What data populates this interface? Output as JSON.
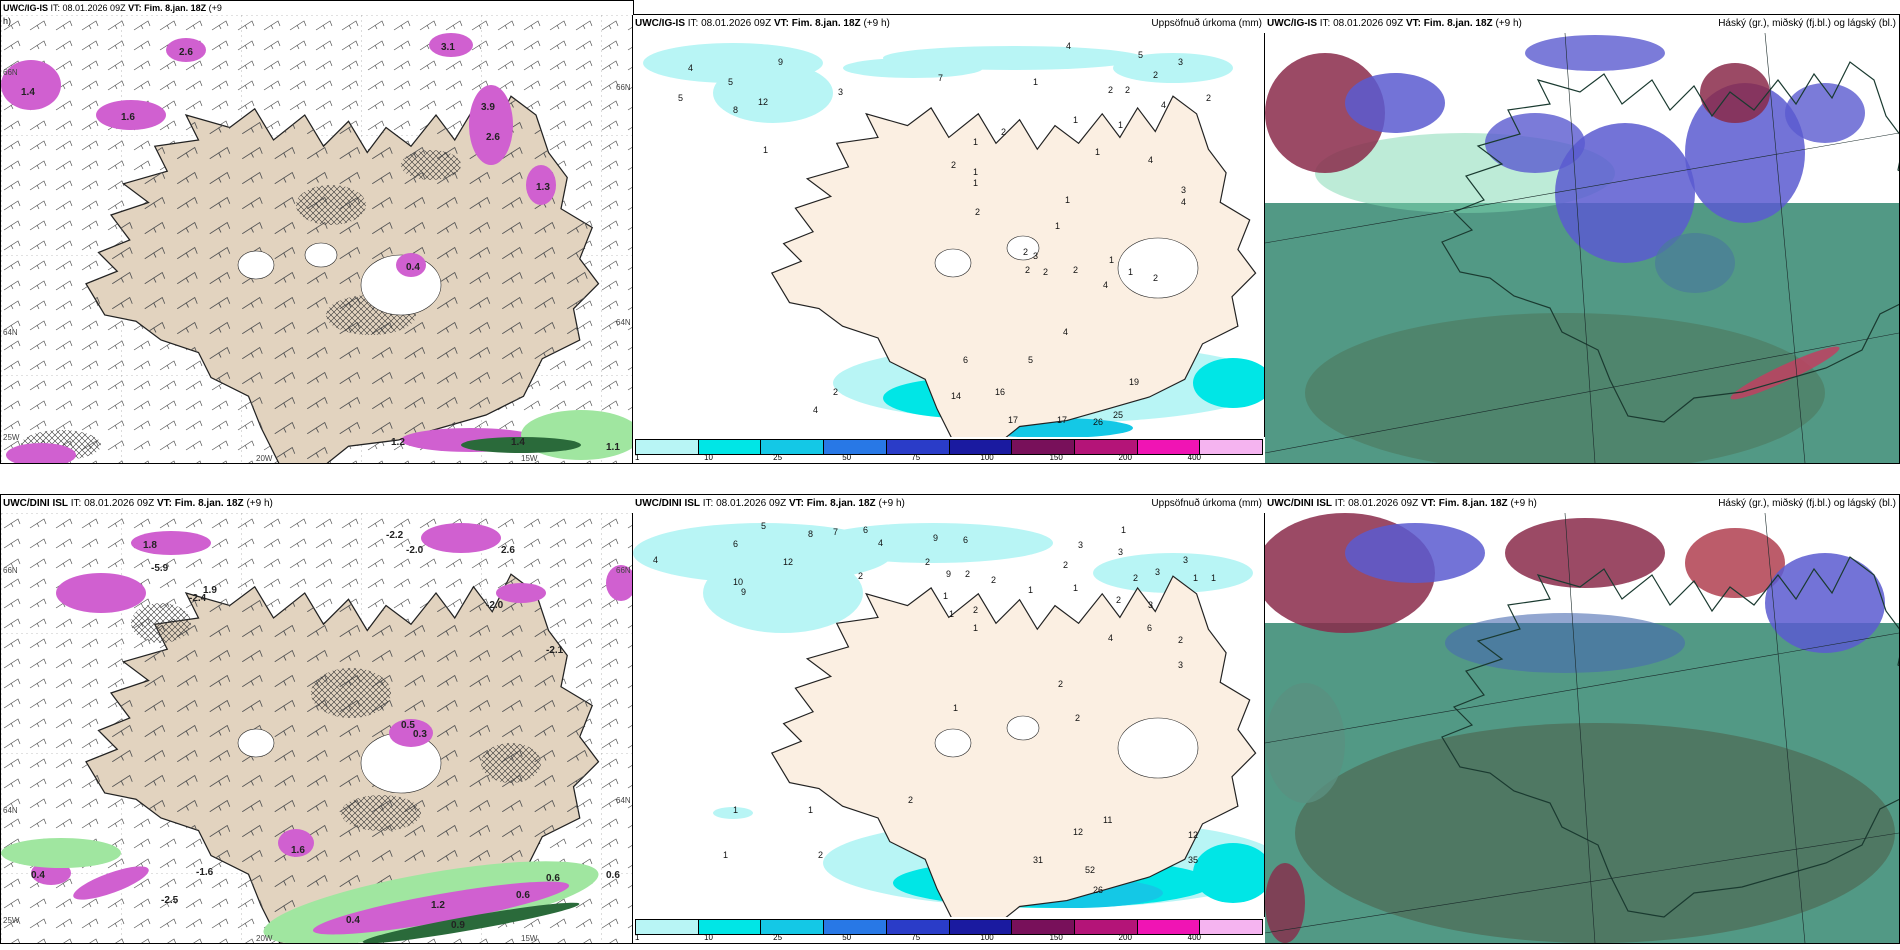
{
  "panels": {
    "top_left": {
      "source": "UWC/IG-IS",
      "issue": "IT: 08.01.2026 09Z",
      "vt_label": "VT:",
      "vt": "Fim. 8.jan. 18Z",
      "lead": "(+9",
      "lead_cont": "h)",
      "coords": [
        "20W",
        "15W",
        "25W",
        "64N",
        "66N",
        "66N",
        "64N"
      ],
      "values": [
        "2.6",
        "3.1",
        "3.9",
        "1.4",
        "2.6",
        "1.6",
        "1.3",
        "0.4",
        "1.1",
        "1.2",
        "1.4"
      ]
    },
    "top_mid": {
      "source": "UWC/IG-IS",
      "issue": "IT: 08.01.2026 09Z",
      "vt_label": "VT:",
      "vt": "Fim. 8.jan. 18Z",
      "lead": "(+9 h)",
      "right": "Uppsöfnuð úrkoma (mm)",
      "values": [
        "4",
        "5",
        "5",
        "9",
        "12",
        "7",
        "3",
        "8",
        "1",
        "4",
        "5",
        "2",
        "3",
        "1",
        "2",
        "2",
        "4",
        "2",
        "1",
        "2",
        "1",
        "1",
        "1",
        "1",
        "4",
        "2",
        "1",
        "1",
        "2",
        "1",
        "3",
        "4",
        "3",
        "2",
        "2",
        "2",
        "1",
        "1",
        "2",
        "4",
        "2",
        "4",
        "5",
        "6",
        "17",
        "16",
        "14",
        "2",
        "4",
        "19",
        "17",
        "26",
        "25"
      ]
    },
    "top_right": {
      "source": "UWC/IG-IS",
      "issue": "IT: 08.01.2026 09Z",
      "vt_label": "VT:",
      "vt": "Fim. 8.jan. 18Z",
      "lead": "(+9 h)",
      "right": "Háský (gr.), miðský (fj.bl.) og lágský (bl.)"
    },
    "bottom_left": {
      "source": "UWC/DINI ISL",
      "issue": "IT: 08.01.2026 09Z",
      "vt_label": "VT:",
      "vt": "Fim. 8.jan. 18Z",
      "lead": "(+9 h)",
      "coords": [
        "20W",
        "15W",
        "25W",
        "64N",
        "66N",
        "66N",
        "64N"
      ],
      "values": [
        "1.8",
        "-5.9",
        "-2.4",
        "1.9",
        "-2.2",
        "-2.0",
        "2.6",
        "-2.0",
        "-2.1",
        "0.5",
        "0.3",
        "1.6",
        "0.4",
        "-1.6",
        "-2.5",
        "0.6",
        "0.4",
        "0.6",
        "0.9",
        "1.2",
        "0.6"
      ]
    },
    "bottom_mid": {
      "source": "UWC/DINI ISL",
      "issue": "IT: 08.01.2026 09Z",
      "vt_label": "VT:",
      "vt": "Fim. 8.jan. 18Z",
      "lead": "(+9 h)",
      "right": "Uppsöfnuð úrkoma (mm)",
      "values": [
        "4",
        "5",
        "6",
        "8",
        "7",
        "6",
        "4",
        "9",
        "6",
        "10",
        "9",
        "12",
        "2",
        "2",
        "9",
        "2",
        "1",
        "1",
        "2",
        "2",
        "1",
        "1",
        "1",
        "2",
        "3",
        "3",
        "2",
        "2",
        "3",
        "6",
        "3",
        "3",
        "1",
        "1",
        "1",
        "2",
        "3",
        "4",
        "1",
        "2",
        "1",
        "2",
        "11",
        "12",
        "35",
        "31",
        "52",
        "26",
        "12",
        "2",
        "2",
        "1",
        "1"
      ]
    },
    "bottom_right": {
      "source": "UWC/DINI ISL",
      "issue": "IT: 08.01.2026 09Z",
      "vt_label": "VT:",
      "vt": "Fim. 8.jan. 18Z",
      "lead": "(+9 h)",
      "right": "Háský (gr.), miðský (fj.bl.) og lágský (bl.)"
    }
  },
  "colorbar": {
    "ticks": [
      "1",
      "10",
      "25",
      "50",
      "75",
      "100",
      "150",
      "200",
      "400"
    ],
    "colors": [
      "#b8f5f5",
      "#00e6e6",
      "#14c8e6",
      "#2878e6",
      "#2a3cc8",
      "#1a1aa0",
      "#78105a",
      "#b41478",
      "#f014b4",
      "#f5b4f0"
    ]
  }
}
